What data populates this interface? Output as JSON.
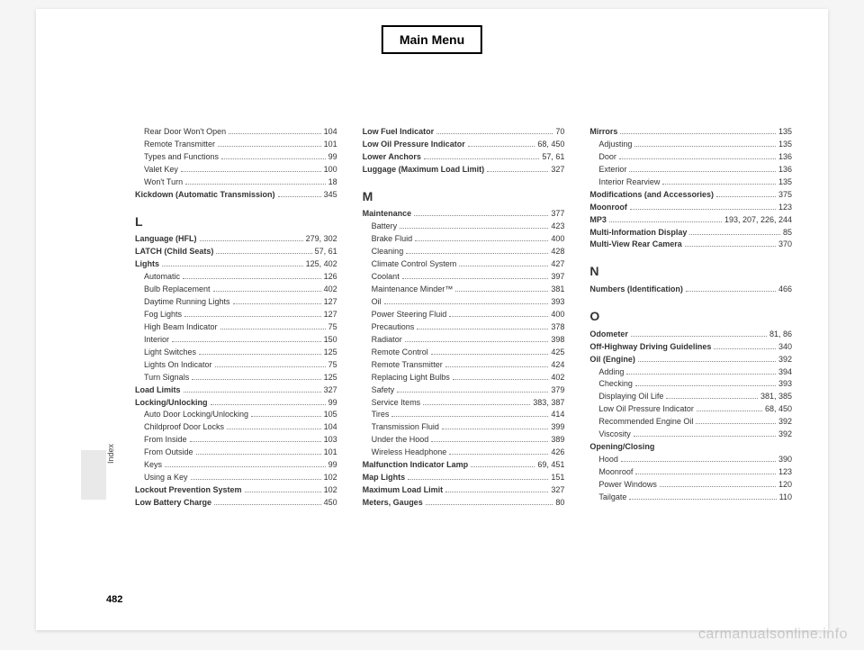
{
  "mainMenu": "Main Menu",
  "pageNumber": "482",
  "sideLabel": "Index",
  "watermark": "carmanualsonline.info",
  "col1": [
    {
      "type": "sub",
      "term": "Rear Door Won't Open",
      "pages": "104"
    },
    {
      "type": "sub",
      "term": "Remote Transmitter",
      "pages": "101"
    },
    {
      "type": "sub",
      "term": "Types and Functions",
      "pages": "99"
    },
    {
      "type": "sub",
      "term": "Valet Key",
      "pages": "100"
    },
    {
      "type": "sub",
      "term": "Won't Turn",
      "pages": "18"
    },
    {
      "type": "entry",
      "term": "Kickdown (Automatic Transmission)",
      "pages": "345"
    },
    {
      "type": "letter",
      "term": "L"
    },
    {
      "type": "entry",
      "term": "Language (HFL)",
      "pages": "279, 302"
    },
    {
      "type": "entry",
      "term": "LATCH (Child Seats)",
      "pages": "57, 61"
    },
    {
      "type": "entry",
      "term": "Lights",
      "pages": "125, 402"
    },
    {
      "type": "sub",
      "term": "Automatic",
      "pages": "126"
    },
    {
      "type": "sub",
      "term": "Bulb Replacement",
      "pages": "402"
    },
    {
      "type": "sub",
      "term": "Daytime Running Lights",
      "pages": "127"
    },
    {
      "type": "sub",
      "term": "Fog Lights",
      "pages": "127"
    },
    {
      "type": "sub",
      "term": "High Beam Indicator",
      "pages": "75"
    },
    {
      "type": "sub",
      "term": "Interior",
      "pages": "150"
    },
    {
      "type": "sub",
      "term": "Light Switches",
      "pages": "125"
    },
    {
      "type": "sub",
      "term": "Lights On Indicator",
      "pages": "75"
    },
    {
      "type": "sub",
      "term": "Turn Signals",
      "pages": "125"
    },
    {
      "type": "entry",
      "term": "Load Limits",
      "pages": "327"
    },
    {
      "type": "entry",
      "term": "Locking/Unlocking",
      "pages": "99"
    },
    {
      "type": "sub",
      "term": "Auto Door Locking/Unlocking",
      "pages": "105"
    },
    {
      "type": "sub",
      "term": "Childproof Door Locks",
      "pages": "104"
    },
    {
      "type": "sub",
      "term": "From Inside",
      "pages": "103"
    },
    {
      "type": "sub",
      "term": "From Outside",
      "pages": "101"
    },
    {
      "type": "sub",
      "term": "Keys",
      "pages": "99"
    },
    {
      "type": "sub",
      "term": "Using a Key",
      "pages": "102"
    },
    {
      "type": "entry",
      "term": "Lockout Prevention System",
      "pages": "102"
    },
    {
      "type": "entry",
      "term": "Low Battery Charge",
      "pages": "450"
    }
  ],
  "col2": [
    {
      "type": "entry",
      "term": "Low Fuel Indicator",
      "pages": "70"
    },
    {
      "type": "entry",
      "term": "Low Oil Pressure Indicator",
      "pages": "68, 450"
    },
    {
      "type": "entry",
      "term": "Lower Anchors",
      "pages": "57, 61"
    },
    {
      "type": "entry",
      "term": "Luggage (Maximum Load Limit)",
      "pages": "327"
    },
    {
      "type": "letter",
      "term": "M"
    },
    {
      "type": "entry",
      "term": "Maintenance",
      "pages": "377"
    },
    {
      "type": "sub",
      "term": "Battery",
      "pages": "423"
    },
    {
      "type": "sub",
      "term": "Brake Fluid",
      "pages": "400"
    },
    {
      "type": "sub",
      "term": "Cleaning",
      "pages": "428"
    },
    {
      "type": "sub",
      "term": "Climate Control System",
      "pages": "427"
    },
    {
      "type": "sub",
      "term": "Coolant",
      "pages": "397"
    },
    {
      "type": "sub",
      "term": "Maintenance Minder™",
      "pages": "381"
    },
    {
      "type": "sub",
      "term": "Oil",
      "pages": "393"
    },
    {
      "type": "sub",
      "term": "Power Steering Fluid",
      "pages": "400"
    },
    {
      "type": "sub",
      "term": "Precautions",
      "pages": "378"
    },
    {
      "type": "sub",
      "term": "Radiator",
      "pages": "398"
    },
    {
      "type": "sub",
      "term": "Remote Control",
      "pages": "425"
    },
    {
      "type": "sub",
      "term": "Remote Transmitter",
      "pages": "424"
    },
    {
      "type": "sub",
      "term": "Replacing Light Bulbs",
      "pages": "402"
    },
    {
      "type": "sub",
      "term": "Safety",
      "pages": "379"
    },
    {
      "type": "sub",
      "term": "Service Items",
      "pages": "383, 387"
    },
    {
      "type": "sub",
      "term": "Tires",
      "pages": "414"
    },
    {
      "type": "sub",
      "term": "Transmission Fluid",
      "pages": "399"
    },
    {
      "type": "sub",
      "term": "Under the Hood",
      "pages": "389"
    },
    {
      "type": "sub",
      "term": "Wireless Headphone",
      "pages": "426"
    },
    {
      "type": "entry",
      "term": "Malfunction Indicator Lamp",
      "pages": "69, 451"
    },
    {
      "type": "entry",
      "term": "Map Lights",
      "pages": "151"
    },
    {
      "type": "entry",
      "term": "Maximum Load Limit",
      "pages": "327"
    },
    {
      "type": "entry",
      "term": "Meters, Gauges",
      "pages": "80"
    }
  ],
  "col3": [
    {
      "type": "entry",
      "term": "Mirrors",
      "pages": "135"
    },
    {
      "type": "sub",
      "term": "Adjusting",
      "pages": "135"
    },
    {
      "type": "sub",
      "term": "Door",
      "pages": "136"
    },
    {
      "type": "sub",
      "term": "Exterior",
      "pages": "136"
    },
    {
      "type": "sub",
      "term": "Interior Rearview",
      "pages": "135"
    },
    {
      "type": "entry",
      "term": "Modifications (and Accessories)",
      "pages": "375"
    },
    {
      "type": "entry",
      "term": "Moonroof",
      "pages": "123"
    },
    {
      "type": "entry",
      "term": "MP3",
      "pages": "193, 207, 226, 244"
    },
    {
      "type": "entry",
      "term": "Multi-Information Display",
      "pages": "85"
    },
    {
      "type": "entry",
      "term": "Multi-View Rear Camera",
      "pages": "370"
    },
    {
      "type": "letter",
      "term": "N"
    },
    {
      "type": "entry",
      "term": "Numbers (Identification)",
      "pages": "466"
    },
    {
      "type": "letter",
      "term": "O"
    },
    {
      "type": "entry",
      "term": "Odometer",
      "pages": "81, 86"
    },
    {
      "type": "entry",
      "term": "Off-Highway Driving Guidelines",
      "pages": "340"
    },
    {
      "type": "entry",
      "term": "Oil (Engine)",
      "pages": "392"
    },
    {
      "type": "sub",
      "term": "Adding",
      "pages": "394"
    },
    {
      "type": "sub",
      "term": "Checking",
      "pages": "393"
    },
    {
      "type": "sub",
      "term": "Displaying Oil Life",
      "pages": "381, 385"
    },
    {
      "type": "sub",
      "term": "Low Oil Pressure Indicator",
      "pages": "68, 450"
    },
    {
      "type": "sub",
      "term": "Recommended Engine Oil",
      "pages": "392"
    },
    {
      "type": "sub",
      "term": "Viscosity",
      "pages": "392"
    },
    {
      "type": "entry",
      "term": "Opening/Closing",
      "pages": ""
    },
    {
      "type": "sub",
      "term": "Hood",
      "pages": "390"
    },
    {
      "type": "sub",
      "term": "Moonroof",
      "pages": "123"
    },
    {
      "type": "sub",
      "term": "Power Windows",
      "pages": "120"
    },
    {
      "type": "sub",
      "term": "Tailgate",
      "pages": "110"
    }
  ]
}
